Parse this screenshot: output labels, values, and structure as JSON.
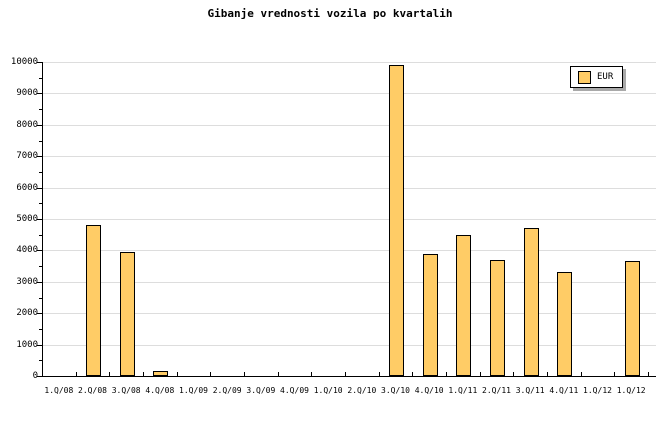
{
  "title": "Gibanje vrednosti vozila po kvartalih",
  "legend": {
    "label": "EUR"
  },
  "colors": {
    "background": "#FFFFFF",
    "bar_fill": "#FFCC66",
    "bar_border": "#000000",
    "grid": "#DDDDDD",
    "axis": "#000000",
    "text": "#000000",
    "legend_shadow": "#A9A9A9"
  },
  "chart_data": {
    "type": "bar",
    "title": "Gibanje vrednosti vozila po kvartalih",
    "categories": [
      "1.Q/08",
      "2.Q/08",
      "3.Q/08",
      "4.Q/08",
      "1.Q/09",
      "2.Q/09",
      "3.Q/09",
      "4.Q/09",
      "1.Q/10",
      "2.Q/10",
      "3.Q/10",
      "4.Q/10",
      "1.Q/11",
      "2.Q/11",
      "3.Q/11",
      "4.Q/11",
      "1.Q/12",
      "1.Q/12"
    ],
    "series": [
      {
        "name": "EUR",
        "values": [
          null,
          4800,
          3950,
          150,
          null,
          null,
          null,
          null,
          null,
          null,
          9900,
          3900,
          4500,
          3700,
          4700,
          3300,
          null,
          3650
        ]
      }
    ],
    "xlabel": "",
    "ylabel": "",
    "ylim": [
      0,
      10000
    ],
    "y_tick_step": 1000,
    "y_minor_tick_step": 500,
    "y_tick_labels": [
      "0",
      "1000",
      "2000",
      "3000",
      "4000",
      "5000",
      "6000",
      "7000",
      "8000",
      "9000",
      "10000"
    ],
    "grid": "horizontal",
    "legend_position": "top-right"
  }
}
